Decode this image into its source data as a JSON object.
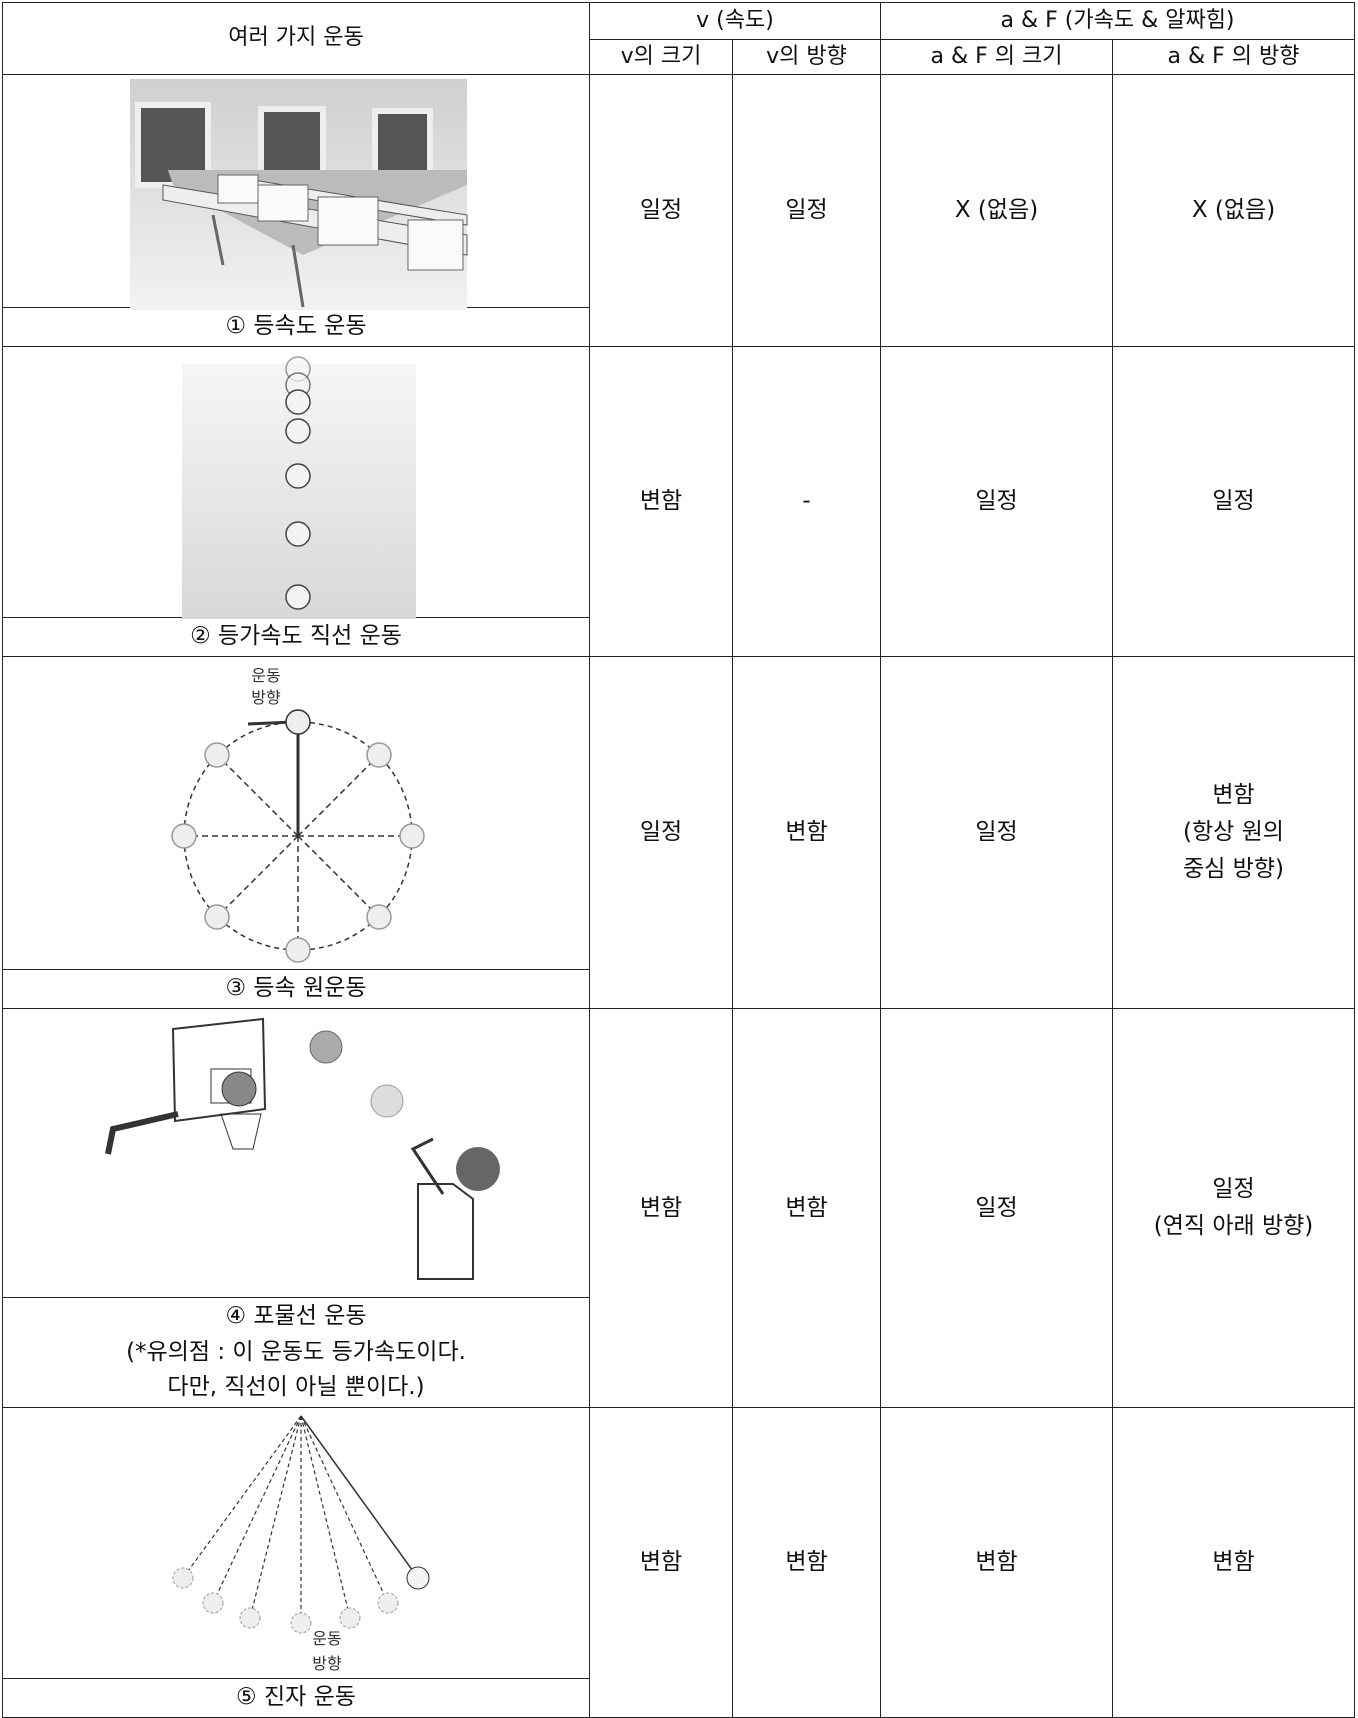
{
  "header": {
    "col1": "여러 가지 운동",
    "v_group": "v (속도)",
    "af_group": "a & F (가속도 & 알짜힘)",
    "sub": [
      "v의 크기",
      "v의 방향",
      "a & F 의 크기",
      "a & F 의 방향"
    ]
  },
  "rows": [
    {
      "caption": [
        "① 등속도 운동"
      ],
      "cells": [
        [
          "일정"
        ],
        [
          "일정"
        ],
        [
          "X (없음)"
        ],
        [
          "X (없음)"
        ]
      ]
    },
    {
      "caption": [
        "② 등가속도 직선 운동"
      ],
      "cells": [
        [
          "변함"
        ],
        [
          "-"
        ],
        [
          "일정"
        ],
        [
          "일정"
        ]
      ]
    },
    {
      "caption": [
        "③ 등속 원운동"
      ],
      "figure_labels": [
        "운동",
        "방향"
      ],
      "cells": [
        [
          "일정"
        ],
        [
          "변함"
        ],
        [
          "일정"
        ],
        [
          "변함",
          "(항상 원의",
          "중심 방향)"
        ]
      ]
    },
    {
      "caption": [
        "④ 포물선 운동",
        "(*유의점 : 이 운동도 등가속도이다.",
        "다만, 직선이 아닐 뿐이다.)"
      ],
      "cells": [
        [
          "변함"
        ],
        [
          "변함"
        ],
        [
          "일정"
        ],
        [
          "일정",
          "(연직 아래 방향)"
        ]
      ]
    },
    {
      "caption": [
        "⑤ 진자 운동"
      ],
      "figure_labels": [
        "운동",
        "방향"
      ],
      "cells": [
        [
          "변함"
        ],
        [
          "변함"
        ],
        [
          "변함"
        ],
        [
          "변함"
        ]
      ]
    }
  ]
}
